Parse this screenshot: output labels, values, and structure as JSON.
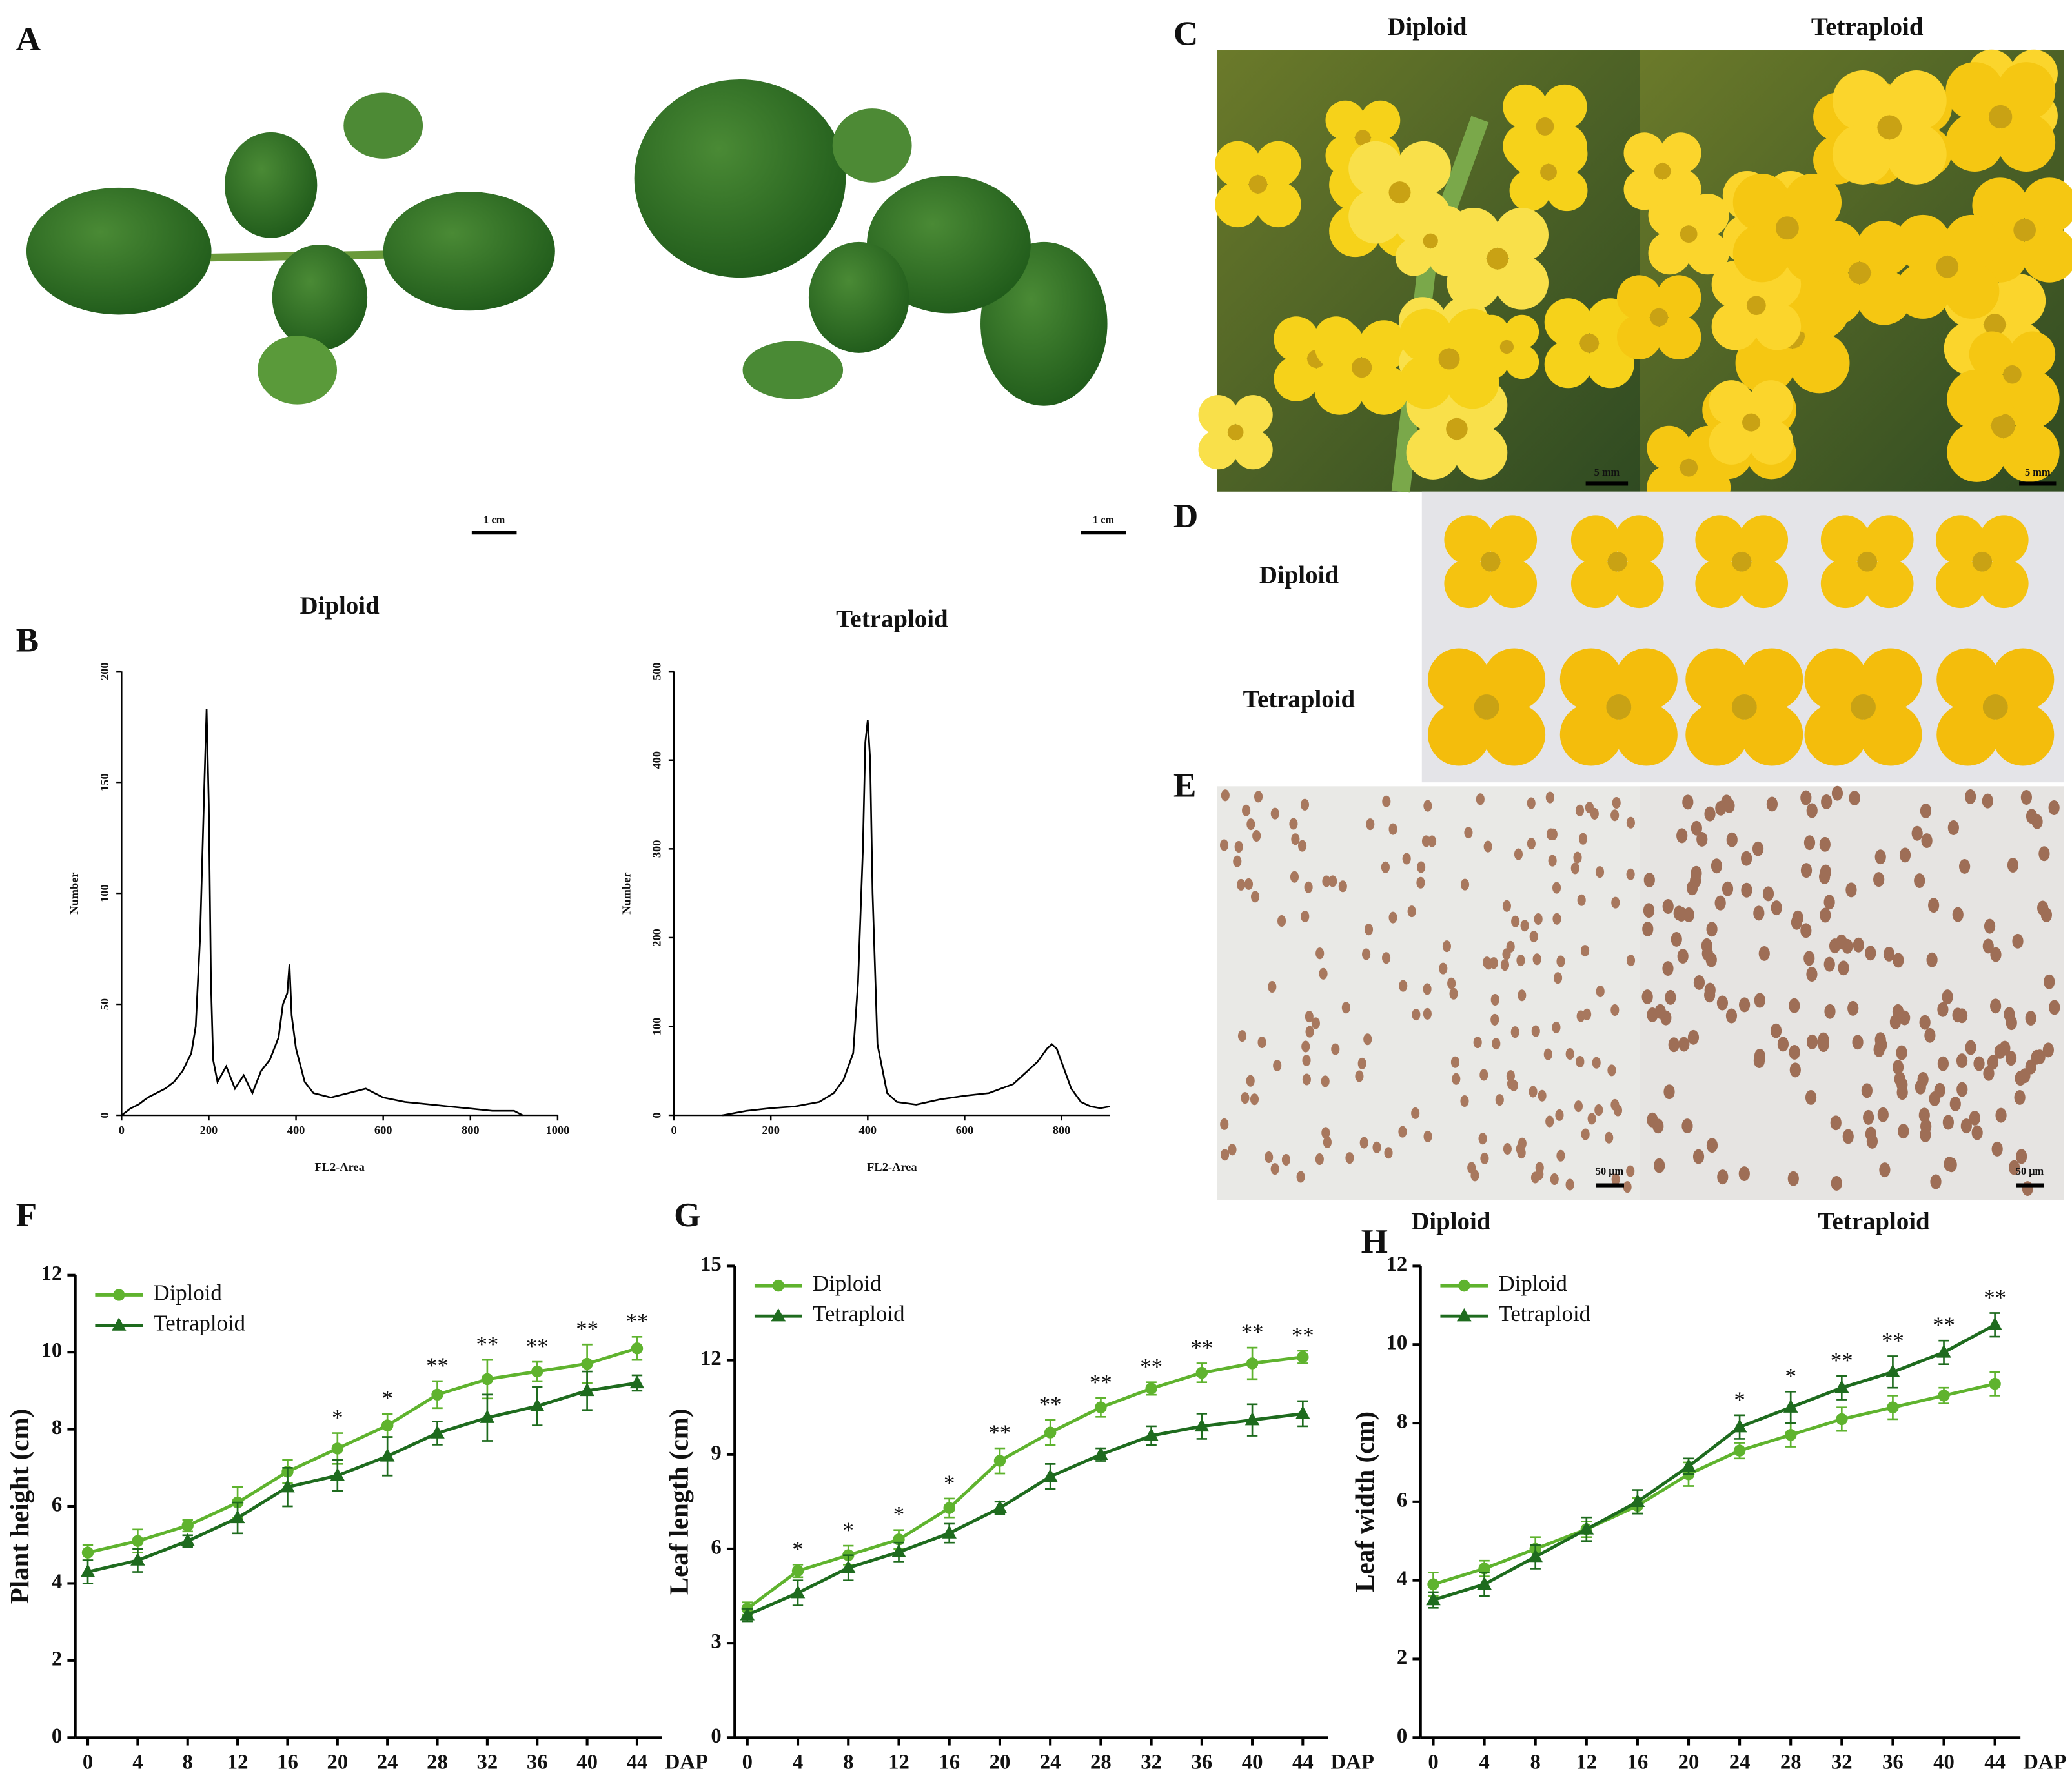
{
  "panel_labels": [
    "A",
    "B",
    "C",
    "D",
    "E",
    "F",
    "G",
    "H"
  ],
  "photos": {
    "A": {
      "scale_bars": [
        "1 cm",
        "1 cm"
      ]
    },
    "C": {
      "labels": [
        "Diploid",
        "Tetraploid"
      ],
      "scale_bars": [
        "5 mm",
        "5 mm"
      ]
    },
    "D": {
      "labels": [
        "Diploid",
        "Tetraploid"
      ]
    },
    "E": {
      "labels": [
        "Diploid",
        "Tetraploid"
      ],
      "scale_bars": [
        "50 μm",
        "50 μm"
      ]
    }
  },
  "chart_data": [
    {
      "type": "line",
      "title": "Diploid",
      "x_label": "FL2-Area",
      "y_label": "Number",
      "color": "#000000",
      "x": [
        0,
        20,
        40,
        60,
        80,
        100,
        120,
        140,
        160,
        170,
        180,
        190,
        195,
        200,
        205,
        210,
        220,
        240,
        260,
        280,
        300,
        320,
        340,
        360,
        370,
        380,
        385,
        390,
        400,
        420,
        440,
        480,
        520,
        560,
        600,
        650,
        700,
        750,
        800,
        850,
        900,
        920
      ],
      "values": [
        0,
        3,
        5,
        8,
        10,
        12,
        15,
        20,
        28,
        40,
        80,
        150,
        183,
        140,
        60,
        25,
        15,
        22,
        12,
        18,
        10,
        20,
        25,
        35,
        50,
        55,
        68,
        45,
        30,
        15,
        10,
        8,
        10,
        12,
        8,
        6,
        5,
        4,
        3,
        2,
        2,
        0
      ],
      "xlim": [
        0,
        1000
      ],
      "xticks": [
        0,
        200,
        400,
        600,
        800,
        1000
      ],
      "ylim": [
        0,
        200
      ],
      "yticks": [
        0,
        50,
        100,
        150,
        200
      ]
    },
    {
      "type": "line",
      "title": "Tetraploid",
      "x_label": "FL2-Area",
      "y_label": "Number",
      "color": "#000000",
      "x": [
        100,
        150,
        200,
        250,
        300,
        330,
        350,
        370,
        380,
        390,
        395,
        400,
        405,
        410,
        420,
        440,
        460,
        500,
        550,
        600,
        650,
        700,
        730,
        750,
        770,
        780,
        790,
        800,
        820,
        840,
        860,
        880,
        900
      ],
      "values": [
        0,
        5,
        8,
        10,
        15,
        25,
        40,
        70,
        150,
        300,
        420,
        445,
        400,
        250,
        80,
        25,
        15,
        12,
        18,
        22,
        25,
        35,
        50,
        60,
        75,
        80,
        75,
        60,
        30,
        15,
        10,
        8,
        10
      ],
      "xlim": [
        0,
        900
      ],
      "xticks": [
        0,
        200,
        400,
        600,
        800
      ],
      "ylim": [
        0,
        500
      ],
      "yticks": [
        0,
        100,
        200,
        300,
        400,
        500
      ]
    },
    {
      "type": "line",
      "x_label": "DAP",
      "y_label": "Plant height (cm)",
      "legend": "upper left",
      "x": [
        0,
        4,
        8,
        12,
        16,
        20,
        24,
        28,
        32,
        36,
        40,
        44
      ],
      "series": [
        {
          "name": "Diploid",
          "color": "#5fb32e",
          "marker": "circle",
          "values": [
            4.8,
            5.1,
            5.5,
            6.1,
            6.9,
            7.5,
            8.1,
            8.9,
            9.3,
            9.5,
            9.7,
            10.1
          ],
          "errors": [
            0.2,
            0.3,
            0.15,
            0.4,
            0.3,
            0.4,
            0.3,
            0.35,
            0.5,
            0.25,
            0.5,
            0.3
          ]
        },
        {
          "name": "Tetraploid",
          "color": "#1e6b1e",
          "marker": "triangle",
          "values": [
            4.3,
            4.6,
            5.1,
            5.7,
            6.5,
            6.8,
            7.3,
            7.9,
            8.3,
            8.6,
            9.0,
            9.2
          ],
          "errors": [
            0.3,
            0.3,
            0.15,
            0.4,
            0.5,
            0.4,
            0.5,
            0.3,
            0.6,
            0.5,
            0.5,
            0.2
          ]
        }
      ],
      "annotations": [
        {
          "x": 20,
          "text": "*"
        },
        {
          "x": 24,
          "text": "*"
        },
        {
          "x": 28,
          "text": "**"
        },
        {
          "x": 32,
          "text": "**"
        },
        {
          "x": 36,
          "text": "**"
        },
        {
          "x": 40,
          "text": "**"
        },
        {
          "x": 44,
          "text": "**"
        }
      ],
      "xlim": [
        -1,
        46
      ],
      "xticks": [
        0,
        4,
        8,
        12,
        16,
        20,
        24,
        28,
        32,
        36,
        40,
        44
      ],
      "ylim": [
        0,
        12
      ],
      "yticks": [
        0,
        2,
        4,
        6,
        8,
        10,
        12
      ]
    },
    {
      "type": "line",
      "x_label": "DAP",
      "y_label": "Leaf length (cm)",
      "legend": "upper left",
      "x": [
        0,
        4,
        8,
        12,
        16,
        20,
        24,
        28,
        32,
        36,
        40,
        44
      ],
      "series": [
        {
          "name": "Diploid",
          "color": "#5fb32e",
          "marker": "circle",
          "values": [
            4.1,
            5.3,
            5.8,
            6.3,
            7.3,
            8.8,
            9.7,
            10.5,
            11.1,
            11.6,
            11.9,
            12.1
          ],
          "errors": [
            0.2,
            0.2,
            0.3,
            0.3,
            0.3,
            0.4,
            0.4,
            0.3,
            0.2,
            0.3,
            0.5,
            0.2
          ]
        },
        {
          "name": "Tetraploid",
          "color": "#1e6b1e",
          "marker": "triangle",
          "values": [
            3.9,
            4.6,
            5.4,
            5.9,
            6.5,
            7.3,
            8.3,
            9.0,
            9.6,
            9.9,
            10.1,
            10.3
          ],
          "errors": [
            0.2,
            0.4,
            0.4,
            0.3,
            0.3,
            0.2,
            0.4,
            0.2,
            0.3,
            0.4,
            0.5,
            0.4
          ]
        }
      ],
      "annotations": [
        {
          "x": 4,
          "text": "*"
        },
        {
          "x": 8,
          "text": "*"
        },
        {
          "x": 12,
          "text": "*"
        },
        {
          "x": 16,
          "text": "*"
        },
        {
          "x": 20,
          "text": "**"
        },
        {
          "x": 24,
          "text": "**"
        },
        {
          "x": 28,
          "text": "**"
        },
        {
          "x": 32,
          "text": "**"
        },
        {
          "x": 36,
          "text": "**"
        },
        {
          "x": 40,
          "text": "**"
        },
        {
          "x": 44,
          "text": "**"
        }
      ],
      "xlim": [
        -1,
        46
      ],
      "xticks": [
        0,
        4,
        8,
        12,
        16,
        20,
        24,
        28,
        32,
        36,
        40,
        44
      ],
      "ylim": [
        0,
        15
      ],
      "yticks": [
        0,
        3,
        6,
        9,
        12,
        15
      ]
    },
    {
      "type": "line",
      "x_label": "DAP",
      "y_label": "Leaf width (cm)",
      "legend": "upper left",
      "x": [
        0,
        4,
        8,
        12,
        16,
        20,
        24,
        28,
        32,
        36,
        40,
        44
      ],
      "series": [
        {
          "name": "Diploid",
          "color": "#5fb32e",
          "marker": "circle",
          "values": [
            3.9,
            4.3,
            4.8,
            5.3,
            5.9,
            6.7,
            7.3,
            7.7,
            8.1,
            8.4,
            8.7,
            9.0
          ],
          "errors": [
            0.3,
            0.2,
            0.3,
            0.2,
            0.2,
            0.3,
            0.2,
            0.3,
            0.3,
            0.3,
            0.2,
            0.3
          ]
        },
        {
          "name": "Tetraploid",
          "color": "#1e6b1e",
          "marker": "triangle",
          "values": [
            3.5,
            3.9,
            4.6,
            5.3,
            6.0,
            6.9,
            7.9,
            8.4,
            8.9,
            9.3,
            9.8,
            10.5
          ],
          "errors": [
            0.2,
            0.3,
            0.3,
            0.3,
            0.3,
            0.2,
            0.3,
            0.4,
            0.3,
            0.4,
            0.3,
            0.3
          ]
        }
      ],
      "annotations": [
        {
          "x": 24,
          "text": "*"
        },
        {
          "x": 28,
          "text": "*"
        },
        {
          "x": 32,
          "text": "**"
        },
        {
          "x": 36,
          "text": "**"
        },
        {
          "x": 40,
          "text": "**"
        },
        {
          "x": 44,
          "text": "**"
        }
      ],
      "xlim": [
        -1,
        46
      ],
      "xticks": [
        0,
        4,
        8,
        12,
        16,
        20,
        24,
        28,
        32,
        36,
        40,
        44
      ],
      "ylim": [
        0,
        12
      ],
      "yticks": [
        0,
        2,
        4,
        6,
        8,
        10,
        12
      ]
    }
  ]
}
